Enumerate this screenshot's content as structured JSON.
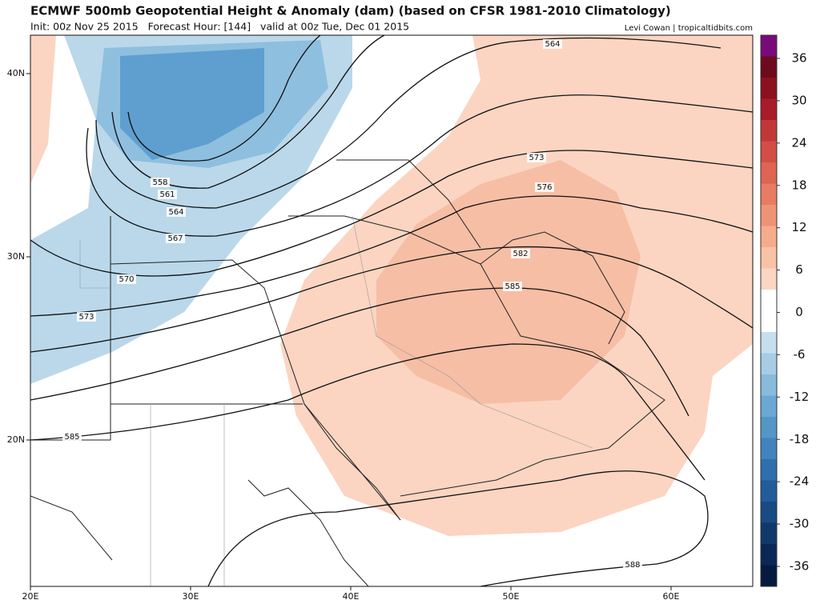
{
  "header": {
    "title": "ECMWF 500mb Geopotential Height & Anomaly (dam) (based on CFSR 1981-2010 Climatology)",
    "subtitle": "Init: 00z Nov 25 2015   Forecast Hour: [144]   valid at 00z Tue, Dec 01 2015",
    "credit": "Levi Cowan | tropicaltidbits.com"
  },
  "map": {
    "lon_labels": [
      "20E",
      "30E",
      "40E",
      "50E",
      "60E"
    ],
    "lat_labels": [
      "40N",
      "30N",
      "20N"
    ],
    "contour_labels": [
      "564",
      "573",
      "576",
      "582",
      "585",
      "558",
      "561",
      "564",
      "567",
      "570",
      "573",
      "585",
      "588"
    ]
  },
  "colorbar": {
    "ticks": [
      36,
      30,
      24,
      18,
      12,
      6,
      0,
      -6,
      -12,
      -18,
      -24,
      -30,
      -36
    ]
  }
}
